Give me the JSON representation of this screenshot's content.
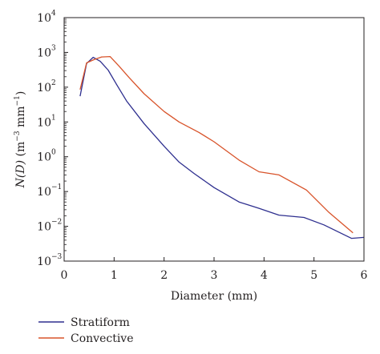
{
  "chart_data": {
    "type": "line",
    "xlabel": "Diameter (mm)",
    "ylabel_parts": [
      "N(D)",
      " (m",
      "−3",
      " mm",
      "−1",
      ")"
    ],
    "xlim": [
      0,
      6
    ],
    "ylim_log10": [
      -3,
      4
    ],
    "yscale": "log",
    "x_ticks": [
      0,
      1,
      2,
      3,
      4,
      5,
      6
    ],
    "y_ticks": [
      {
        "base": "10",
        "exp": "−3",
        "value": 0.001
      },
      {
        "base": "10",
        "exp": "−2",
        "value": 0.01
      },
      {
        "base": "10",
        "exp": "−1",
        "value": 0.1
      },
      {
        "base": "10",
        "exp": "0",
        "value": 1
      },
      {
        "base": "10",
        "exp": "1",
        "value": 10
      },
      {
        "base": "10",
        "exp": "2",
        "value": 100
      },
      {
        "base": "10",
        "exp": "3",
        "value": 1000
      },
      {
        "base": "10",
        "exp": "4",
        "value": 10000
      }
    ],
    "legend_placement": "bottom-left",
    "series": [
      {
        "name": "Stratiform",
        "color": "#2e2f8f",
        "x": [
          0.32,
          0.45,
          0.58,
          0.72,
          0.88,
          1.05,
          1.25,
          1.6,
          2.0,
          2.3,
          2.6,
          3.0,
          3.5,
          3.9,
          4.3,
          4.8,
          5.2,
          5.75,
          6.0
        ],
        "y": [
          55,
          480,
          720,
          560,
          310,
          120,
          40,
          9,
          2.0,
          0.7,
          0.33,
          0.13,
          0.05,
          0.033,
          0.021,
          0.018,
          0.011,
          0.0045,
          0.0048
        ]
      },
      {
        "name": "Convective",
        "color": "#d8532a",
        "x": [
          0.32,
          0.45,
          0.6,
          0.75,
          0.92,
          1.1,
          1.3,
          1.6,
          2.0,
          2.3,
          2.7,
          3.0,
          3.5,
          3.9,
          4.3,
          4.85,
          5.3,
          5.78
        ],
        "y": [
          85,
          500,
          620,
          740,
          760,
          400,
          190,
          65,
          20,
          10,
          5,
          2.7,
          0.8,
          0.37,
          0.3,
          0.11,
          0.025,
          0.0065
        ]
      }
    ]
  }
}
